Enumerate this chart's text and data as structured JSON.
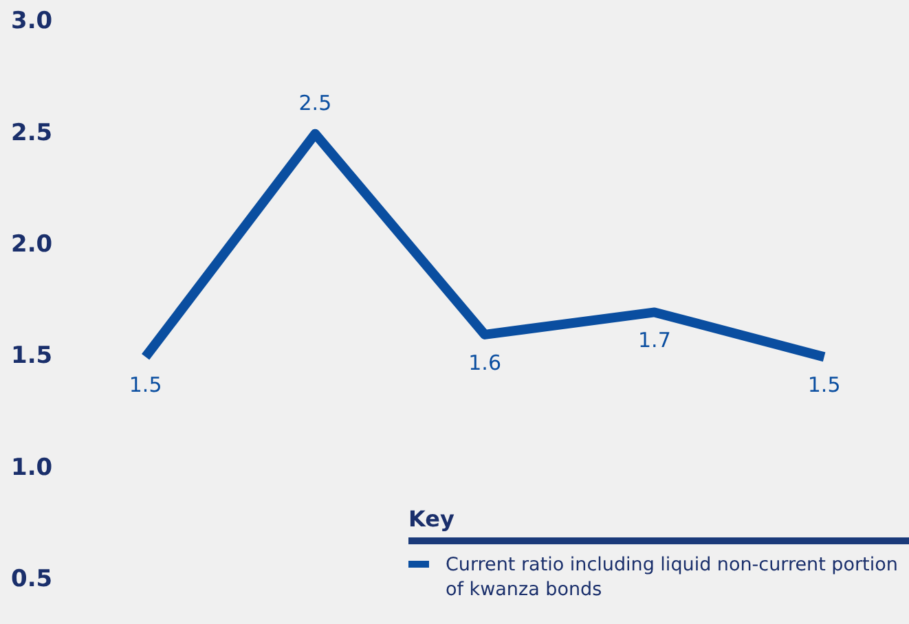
{
  "chart_data": {
    "type": "line",
    "categories": [
      null,
      null,
      null,
      null,
      null
    ],
    "series": [
      {
        "name": "Current ratio including liquid non-current portion of kwanza bonds",
        "color": "#0a4ea0",
        "values": [
          1.5,
          2.5,
          1.6,
          1.7,
          1.5
        ]
      }
    ],
    "ylim": [
      0.5,
      3.0
    ],
    "yticks": [
      {
        "value": 0.5,
        "label": "0.5"
      },
      {
        "value": 1,
        "label": "1.0"
      },
      {
        "value": 1.5,
        "label": "1.5"
      },
      {
        "value": 2,
        "label": "2.0"
      },
      {
        "value": 2.5,
        "label": "2.5"
      },
      {
        "value": 3,
        "label": "3.0"
      }
    ],
    "tick_labels": "y",
    "grid": false,
    "data_labels": true,
    "legend": "bottom right",
    "legend_title": "Key",
    "marker": "none",
    "line_style": "solid"
  }
}
